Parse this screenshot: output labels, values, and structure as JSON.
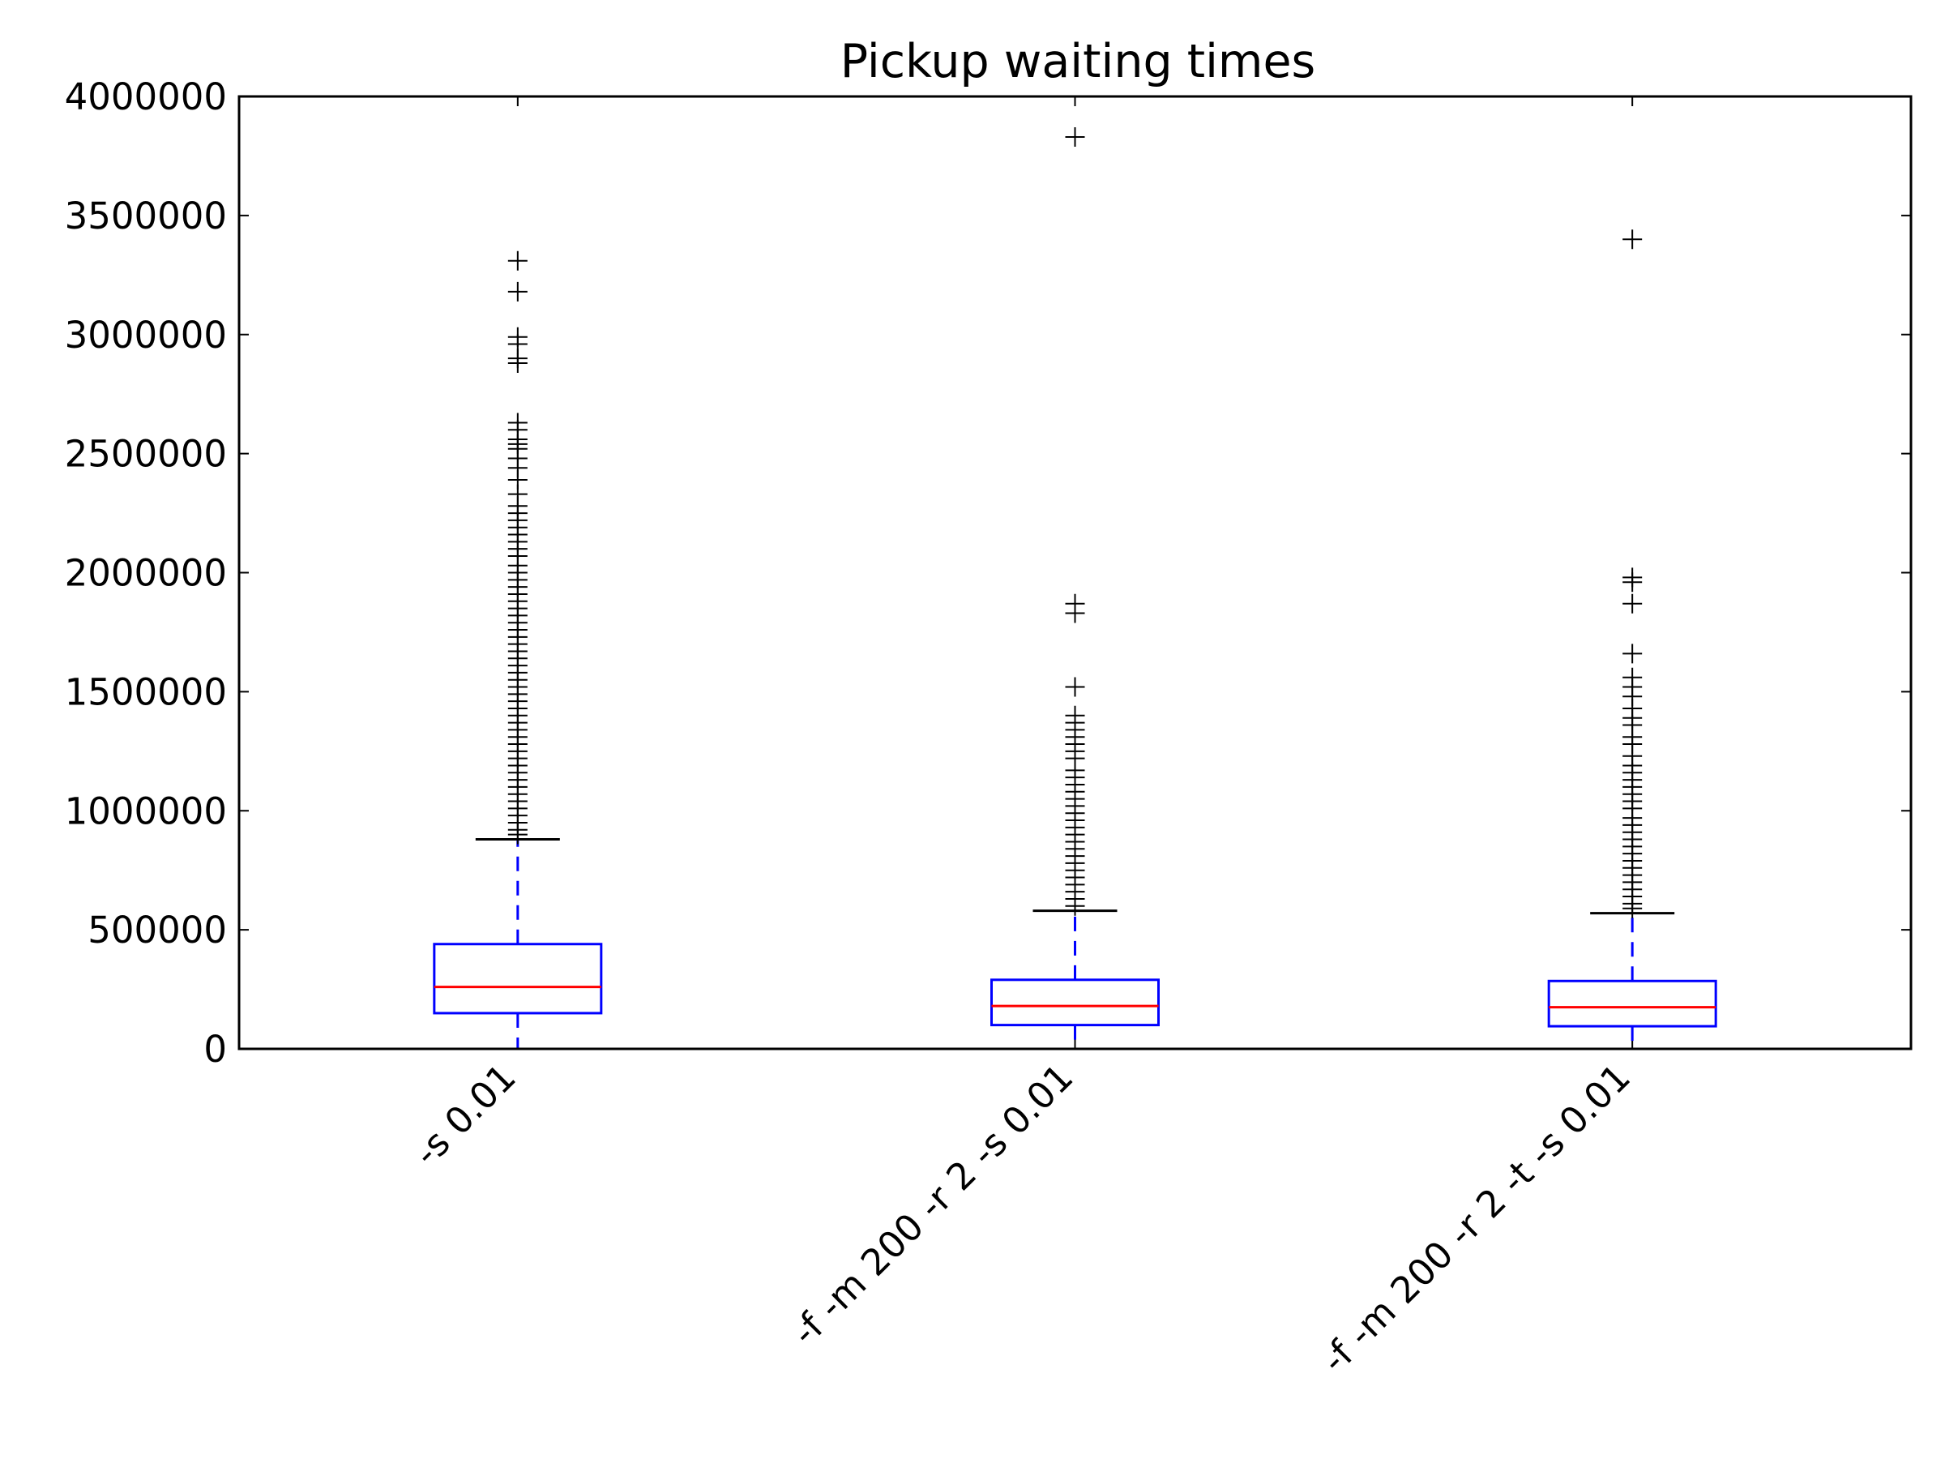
{
  "chart_data": {
    "type": "box",
    "title": "Pickup waiting times",
    "xlabel": "",
    "ylabel": "",
    "ylim": [
      0,
      4000000
    ],
    "yticks": [
      0,
      500000,
      1000000,
      1500000,
      2000000,
      2500000,
      3000000,
      3500000,
      4000000
    ],
    "ytick_labels": [
      "0",
      "500000",
      "1000000",
      "1500000",
      "2000000",
      "2500000",
      "3000000",
      "3500000",
      "4000000"
    ],
    "categories": [
      "-s 0.01",
      "-f -m 200 -r 2 -s 0.01",
      "-f -m 200 -r 2 -t -s 0.01"
    ],
    "grid": false,
    "colors": {
      "box": "#0000ff",
      "median": "#ff0000",
      "cap": "#000000",
      "flier": "#000000",
      "axes": "#000000"
    },
    "boxes": [
      {
        "whisker_low": 0,
        "q1": 150000,
        "median": 260000,
        "q3": 440000,
        "whisker_high": 880000,
        "outliers": [
          3310000,
          3180000,
          2990000,
          2960000,
          2900000,
          2880000,
          2630000,
          2600000,
          2560000,
          2540000,
          2520000,
          2480000,
          2440000,
          2390000,
          2330000,
          2280000,
          2250000,
          2220000,
          2190000,
          2160000,
          2130000,
          2100000,
          2070000,
          2030000,
          2000000,
          1970000,
          1940000,
          1910000,
          1880000,
          1850000,
          1820000,
          1790000,
          1760000,
          1730000,
          1700000,
          1670000,
          1640000,
          1610000,
          1580000,
          1550000,
          1520000,
          1490000,
          1460000,
          1430000,
          1400000,
          1370000,
          1340000,
          1310000,
          1280000,
          1250000,
          1220000,
          1190000,
          1160000,
          1130000,
          1100000,
          1070000,
          1040000,
          1010000,
          980000,
          950000,
          920000,
          900000
        ]
      },
      {
        "whisker_low": 0,
        "q1": 100000,
        "median": 180000,
        "q3": 290000,
        "whisker_high": 580000,
        "outliers": [
          3830000,
          1870000,
          1830000,
          1520000,
          1400000,
          1370000,
          1340000,
          1310000,
          1280000,
          1250000,
          1220000,
          1170000,
          1140000,
          1110000,
          1080000,
          1050000,
          1020000,
          990000,
          960000,
          930000,
          900000,
          870000,
          840000,
          810000,
          780000,
          750000,
          720000,
          690000,
          660000,
          630000,
          600000
        ]
      },
      {
        "whisker_low": 0,
        "q1": 95000,
        "median": 175000,
        "q3": 285000,
        "whisker_high": 570000,
        "outliers": [
          3400000,
          1980000,
          1960000,
          1870000,
          1660000,
          1560000,
          1520000,
          1480000,
          1430000,
          1390000,
          1360000,
          1310000,
          1280000,
          1230000,
          1190000,
          1160000,
          1130000,
          1100000,
          1070000,
          1040000,
          1010000,
          970000,
          940000,
          910000,
          880000,
          850000,
          820000,
          790000,
          760000,
          730000,
          700000,
          670000,
          640000,
          610000,
          590000
        ]
      }
    ]
  }
}
